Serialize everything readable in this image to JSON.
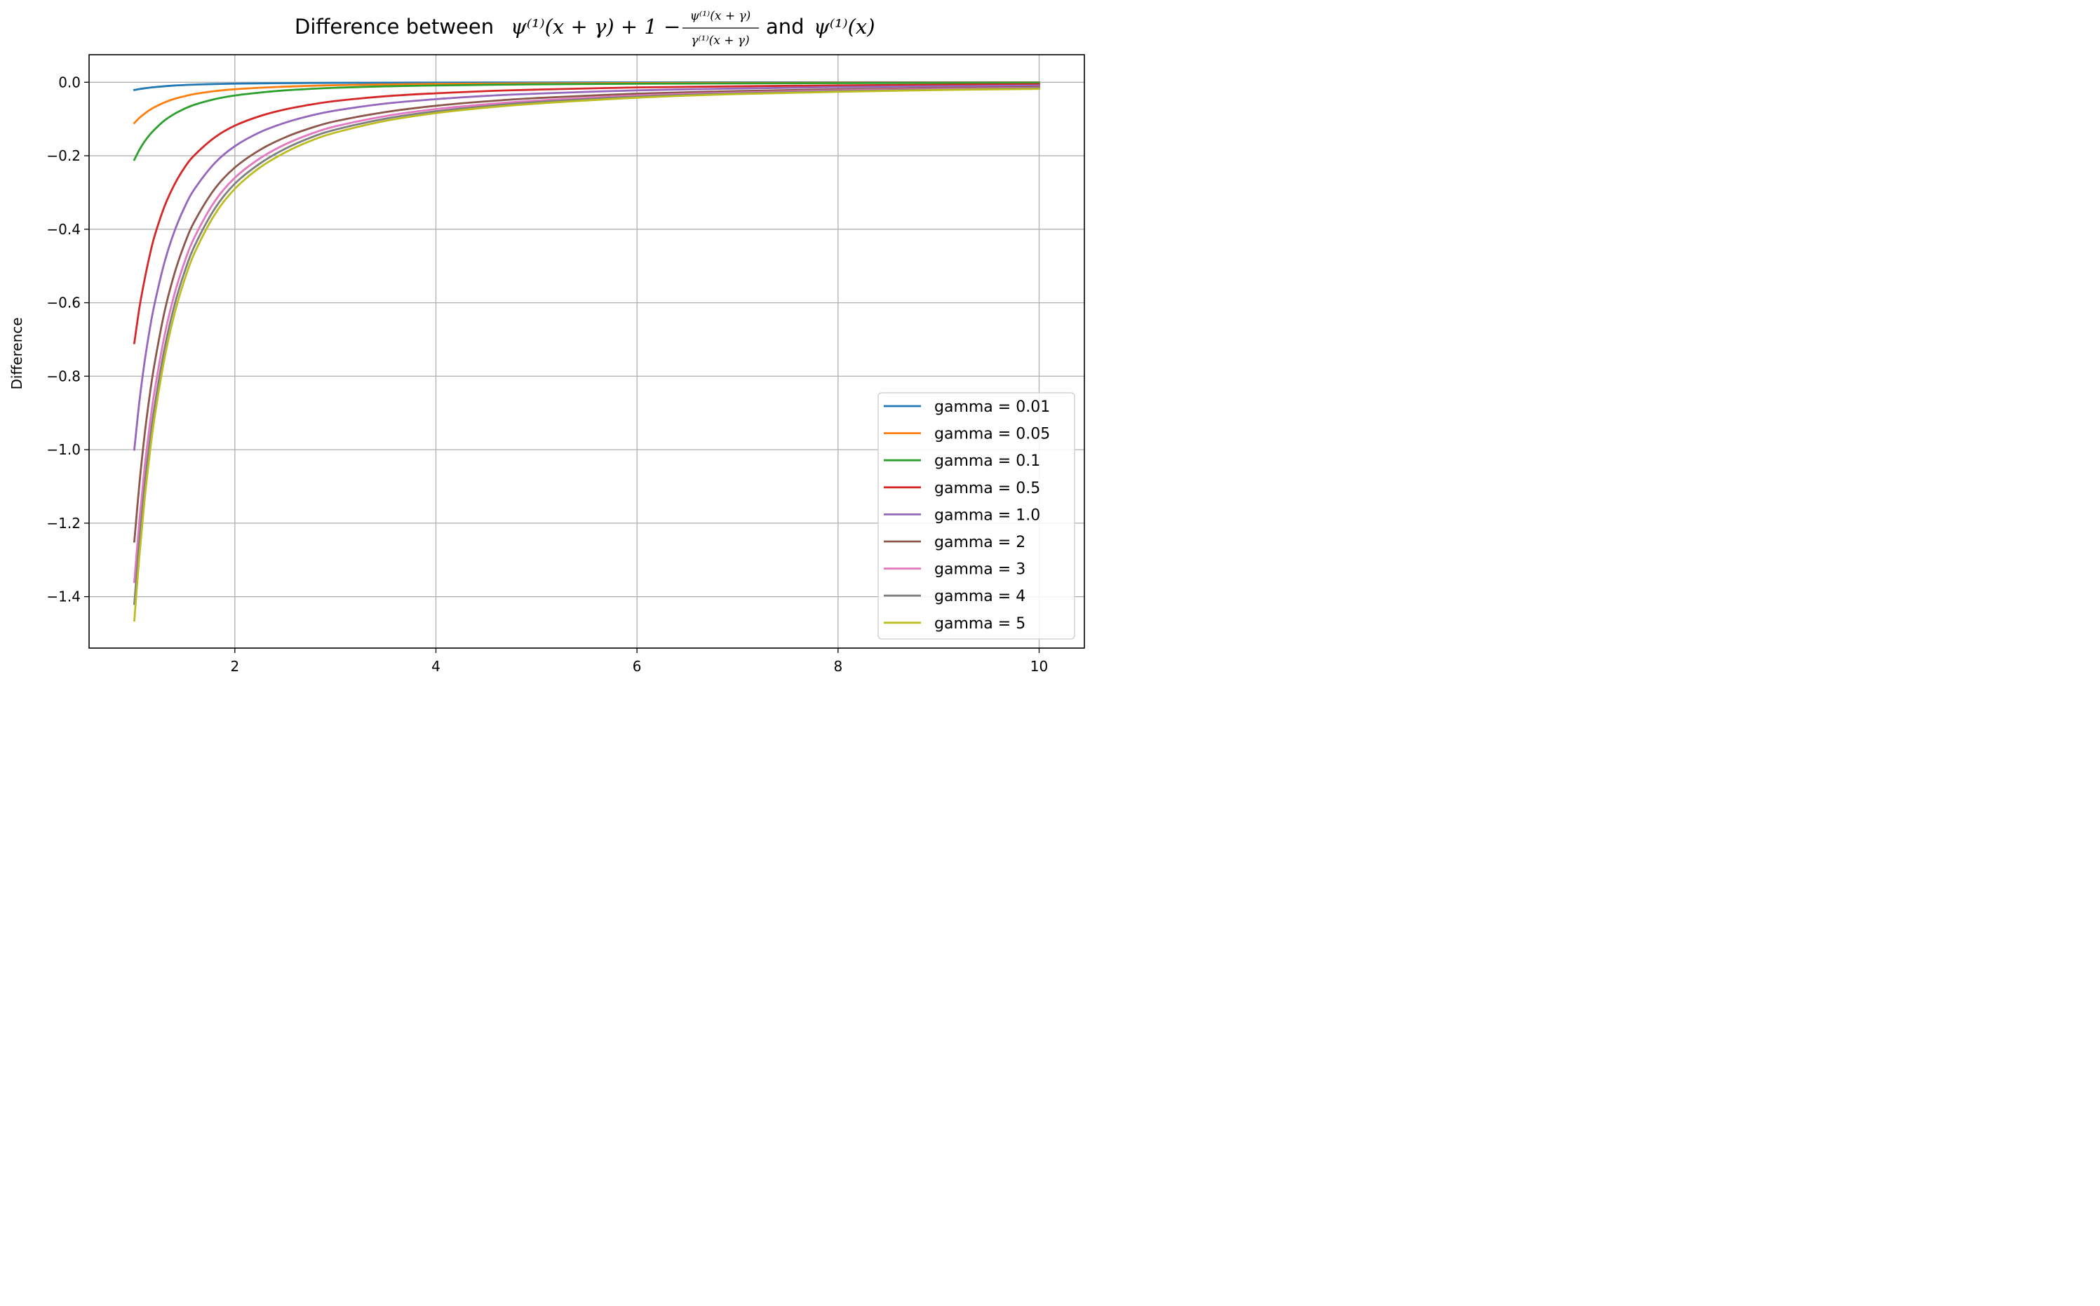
{
  "chart_data": {
    "type": "line",
    "title": "Difference between ψ⁽¹⁾(x + γ) + 1 − ψ⁽¹⁾(x + γ)/γ⁽¹⁾(x + γ) and ψ⁽¹⁾(x)",
    "title_parts": {
      "lead": "Difference between ",
      "lhs": "ψ⁽¹⁾(x + γ) + 1 −",
      "frac_num": "ψ⁽¹⁾(x + γ)",
      "frac_den": "γ⁽¹⁾(x + γ)",
      "mid": " and ",
      "rhs": "ψ⁽¹⁾(x)"
    },
    "xlabel": "",
    "ylabel": "Difference",
    "xlim": [
      0.55,
      10.45
    ],
    "ylim": [
      -1.54,
      0.075
    ],
    "xticks": [
      2,
      4,
      6,
      8,
      10
    ],
    "xtick_labels": [
      "2",
      "4",
      "6",
      "8",
      "10"
    ],
    "yticks": [
      0.0,
      -0.2,
      -0.4,
      -0.6,
      -0.8,
      -1.0,
      -1.2,
      -1.4
    ],
    "ytick_labels": [
      "0.0",
      "−0.2",
      "−0.4",
      "−0.6",
      "−0.8",
      "−1.0",
      "−1.2",
      "−1.4"
    ],
    "grid": true,
    "legend_position": "lower-right",
    "x": [
      1.0,
      1.05,
      1.1,
      1.15,
      1.2,
      1.3,
      1.4,
      1.5,
      1.6,
      1.8,
      2.0,
      2.25,
      2.5,
      2.75,
      3.0,
      3.5,
      4.0,
      4.5,
      5.0,
      6.0,
      7.0,
      8.0,
      9.0,
      10.0
    ],
    "series": [
      {
        "name": "gamma = 0.01",
        "color": "#1f77b4",
        "values": [
          -0.021,
          -0.0185,
          -0.0165,
          -0.0148,
          -0.0133,
          -0.0108,
          -0.0089,
          -0.0075,
          -0.0064,
          -0.0048,
          -0.0038,
          -0.0029,
          -0.0023,
          -0.0019,
          -0.0016,
          -0.0012,
          -0.0009,
          -0.0007,
          -0.0006,
          -0.0004,
          -0.0003,
          -0.0002,
          -0.0002,
          -0.0001
        ]
      },
      {
        "name": "gamma = 0.05",
        "color": "#ff7f0e",
        "values": [
          -0.111,
          -0.097,
          -0.086,
          -0.076,
          -0.068,
          -0.055,
          -0.045,
          -0.038,
          -0.032,
          -0.024,
          -0.019,
          -0.015,
          -0.012,
          -0.0097,
          -0.0081,
          -0.006,
          -0.0046,
          -0.0037,
          -0.003,
          -0.0021,
          -0.0016,
          -0.0012,
          -0.001,
          -0.0008
        ]
      },
      {
        "name": "gamma = 0.1",
        "color": "#2ca02c",
        "values": [
          -0.211,
          -0.184,
          -0.162,
          -0.144,
          -0.129,
          -0.104,
          -0.086,
          -0.072,
          -0.061,
          -0.046,
          -0.036,
          -0.028,
          -0.022,
          -0.018,
          -0.015,
          -0.011,
          -0.0088,
          -0.007,
          -0.0057,
          -0.004,
          -0.003,
          -0.0023,
          -0.0018,
          -0.0015
        ]
      },
      {
        "name": "gamma = 0.5",
        "color": "#d62728",
        "values": [
          -0.71,
          -0.615,
          -0.54,
          -0.475,
          -0.42,
          -0.338,
          -0.278,
          -0.232,
          -0.198,
          -0.15,
          -0.118,
          -0.092,
          -0.074,
          -0.061,
          -0.051,
          -0.038,
          -0.03,
          -0.024,
          -0.02,
          -0.014,
          -0.011,
          -0.0085,
          -0.0068,
          -0.0055
        ]
      },
      {
        "name": "gamma = 1.0",
        "color": "#9467bd",
        "values": [
          -1.0,
          -0.87,
          -0.765,
          -0.678,
          -0.605,
          -0.49,
          -0.405,
          -0.34,
          -0.29,
          -0.22,
          -0.174,
          -0.136,
          -0.11,
          -0.091,
          -0.077,
          -0.058,
          -0.046,
          -0.037,
          -0.031,
          -0.022,
          -0.017,
          -0.013,
          -0.011,
          -0.0088
        ]
      },
      {
        "name": "gamma = 2",
        "color": "#8c564b",
        "values": [
          -1.25,
          -1.095,
          -0.965,
          -0.858,
          -0.768,
          -0.625,
          -0.52,
          -0.44,
          -0.378,
          -0.29,
          -0.232,
          -0.184,
          -0.15,
          -0.125,
          -0.106,
          -0.081,
          -0.064,
          -0.052,
          -0.043,
          -0.031,
          -0.024,
          -0.019,
          -0.016,
          -0.013
        ]
      },
      {
        "name": "gamma = 3",
        "color": "#e377c2",
        "values": [
          -1.36,
          -1.195,
          -1.055,
          -0.94,
          -0.843,
          -0.69,
          -0.576,
          -0.489,
          -0.421,
          -0.324,
          -0.26,
          -0.207,
          -0.169,
          -0.141,
          -0.12,
          -0.092,
          -0.073,
          -0.06,
          -0.05,
          -0.036,
          -0.028,
          -0.022,
          -0.018,
          -0.015
        ]
      },
      {
        "name": "gamma = 4",
        "color": "#7f7f7f",
        "values": [
          -1.42,
          -1.25,
          -1.105,
          -0.985,
          -0.884,
          -0.725,
          -0.606,
          -0.516,
          -0.445,
          -0.344,
          -0.276,
          -0.221,
          -0.181,
          -0.151,
          -0.129,
          -0.099,
          -0.079,
          -0.065,
          -0.054,
          -0.039,
          -0.03,
          -0.024,
          -0.02,
          -0.016
        ]
      },
      {
        "name": "gamma = 5",
        "color": "#bcbd22",
        "values": [
          -1.465,
          -1.29,
          -1.142,
          -1.019,
          -0.915,
          -0.752,
          -0.63,
          -0.537,
          -0.464,
          -0.36,
          -0.29,
          -0.232,
          -0.191,
          -0.16,
          -0.137,
          -0.105,
          -0.084,
          -0.069,
          -0.058,
          -0.042,
          -0.032,
          -0.026,
          -0.021,
          -0.018
        ]
      }
    ]
  }
}
